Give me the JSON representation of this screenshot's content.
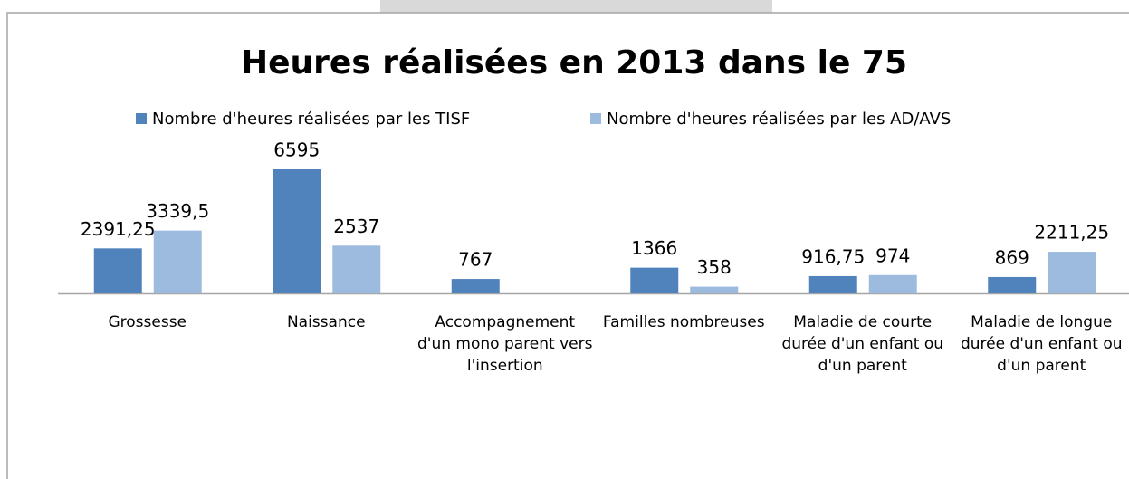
{
  "chart_data": {
    "type": "bar",
    "title": "Heures réalisées en 2013 dans le 75",
    "categories": [
      "Grossesse",
      "Naissance",
      "Accompagnement d'un mono parent vers l'insertion",
      "Familles nombreuses",
      "Maladie de courte durée d'un enfant ou d'un parent",
      "Maladie de longue durée d'un enfant ou d'un parent"
    ],
    "series": [
      {
        "name": "Nombre d'heures réalisées par les TISF",
        "color": "#5082bc",
        "values": [
          2391.25,
          6595,
          767,
          1366,
          916.75,
          869
        ],
        "value_labels": [
          "2391,25",
          "6595",
          "767",
          "1366",
          "916,75",
          "869"
        ]
      },
      {
        "name": "Nombre d'heures réalisées par les AD/AVS",
        "color": "#9dbbdf",
        "values": [
          3339.5,
          2537,
          null,
          358,
          974,
          2211.25
        ],
        "value_labels": [
          "3339,5",
          "2537",
          null,
          "358",
          "974",
          "2211,25"
        ]
      }
    ],
    "legend": "top"
  }
}
